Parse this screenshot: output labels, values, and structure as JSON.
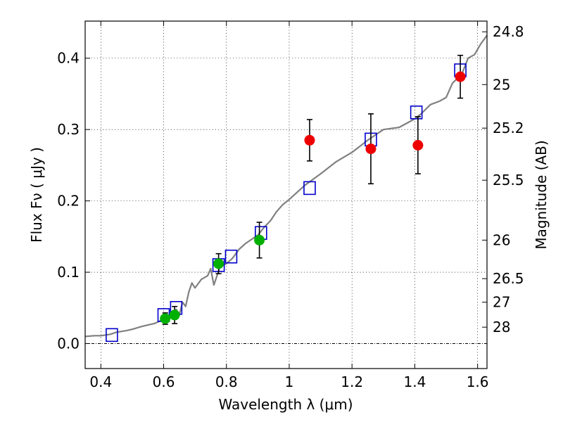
{
  "chart_data": {
    "type": "scatter",
    "xlabel": "Wavelength  λ (μm)",
    "ylabel": "Flux  Fν  ( μJy )",
    "ylabel_right": "Magnitude (AB)",
    "xlim": [
      0.35,
      1.63
    ],
    "ylim": [
      -0.035,
      0.452
    ],
    "grid": true,
    "x_ticks": [
      0.4,
      0.6,
      0.8,
      1.0,
      1.2,
      1.4,
      1.6
    ],
    "x_tick_labels": [
      "0.4",
      "0.6",
      "0.8",
      "1",
      "1.2",
      "1.4",
      "1.6"
    ],
    "y_ticks": [
      0.0,
      0.1,
      0.2,
      0.3,
      0.4
    ],
    "y_tick_labels": [
      "0.0",
      "0.1",
      "0.2",
      "0.3",
      "0.4"
    ],
    "right_ticks": [
      {
        "label": "24.8",
        "flux": 0.437
      },
      {
        "label": "25",
        "flux": 0.363
      },
      {
        "label": "25.2",
        "flux": 0.302
      },
      {
        "label": "25.5",
        "flux": 0.229
      },
      {
        "label": "26",
        "flux": 0.145
      },
      {
        "label": "26.5",
        "flux": 0.091
      },
      {
        "label": "27",
        "flux": 0.058
      },
      {
        "label": "28",
        "flux": 0.023
      }
    ],
    "series": [
      {
        "kind": "line",
        "color": "#808080",
        "x": [
          0.35,
          0.38,
          0.4,
          0.43,
          0.45,
          0.48,
          0.5,
          0.53,
          0.55,
          0.57,
          0.58,
          0.59,
          0.6,
          0.61,
          0.62,
          0.63,
          0.64,
          0.65,
          0.66,
          0.67,
          0.68,
          0.69,
          0.7,
          0.72,
          0.74,
          0.75,
          0.76,
          0.78,
          0.8,
          0.82,
          0.84,
          0.86,
          0.88,
          0.9,
          0.92,
          0.94,
          0.96,
          0.98,
          1.0,
          1.05,
          1.1,
          1.15,
          1.2,
          1.25,
          1.3,
          1.35,
          1.4,
          1.42,
          1.45,
          1.48,
          1.5,
          1.52,
          1.55,
          1.57,
          1.59,
          1.61,
          1.63
        ],
        "y": [
          0.01,
          0.011,
          0.011,
          0.013,
          0.016,
          0.018,
          0.02,
          0.024,
          0.026,
          0.028,
          0.03,
          0.032,
          0.034,
          0.036,
          0.038,
          0.043,
          0.048,
          0.04,
          0.058,
          0.052,
          0.072,
          0.085,
          0.078,
          0.09,
          0.095,
          0.105,
          0.082,
          0.108,
          0.112,
          0.12,
          0.132,
          0.14,
          0.146,
          0.152,
          0.163,
          0.172,
          0.185,
          0.195,
          0.202,
          0.222,
          0.238,
          0.255,
          0.268,
          0.285,
          0.3,
          0.303,
          0.315,
          0.322,
          0.335,
          0.34,
          0.345,
          0.365,
          0.378,
          0.4,
          0.405,
          0.42,
          0.432
        ]
      },
      {
        "kind": "squares",
        "color": "#0000cc",
        "x": [
          0.435,
          0.6,
          0.64,
          0.775,
          0.815,
          0.91,
          1.065,
          1.26,
          1.405,
          1.545
        ],
        "y": [
          0.012,
          0.04,
          0.05,
          0.11,
          0.122,
          0.155,
          0.218,
          0.286,
          0.324,
          0.383
        ]
      },
      {
        "kind": "points",
        "color": "#00b000",
        "x": [
          0.605,
          0.635,
          0.775,
          0.905
        ],
        "y": [
          0.035,
          0.04,
          0.112,
          0.145
        ],
        "err": [
          0.008,
          0.012,
          0.014,
          0.025
        ]
      },
      {
        "kind": "points",
        "color": "#ee0000",
        "x": [
          1.065,
          1.26,
          1.41,
          1.545
        ],
        "y": [
          0.285,
          0.273,
          0.278,
          0.374
        ],
        "err": [
          0.029,
          0.049,
          0.04,
          0.03
        ]
      }
    ]
  }
}
